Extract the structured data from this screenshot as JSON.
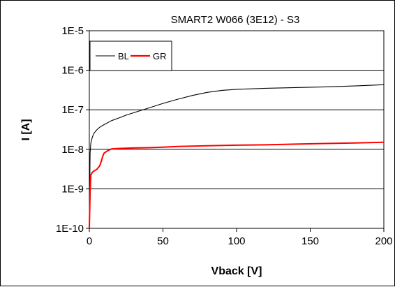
{
  "chart_data": {
    "type": "line",
    "title": "SMART2 W066 (3E12) - S3",
    "xlabel": "Vback [V]",
    "ylabel": "I [A]",
    "xlim": [
      0,
      200
    ],
    "ylim": [
      1e-10,
      1e-05
    ],
    "yscale": "log",
    "grid": "horizontal",
    "legend_position": "top-left",
    "x_ticks": [
      "0",
      "50",
      "100",
      "150",
      "200"
    ],
    "y_ticks": [
      "1E-10",
      "1E-9",
      "1E-8",
      "1E-7",
      "1E-6",
      "1E-5"
    ],
    "series": [
      {
        "name": "BL",
        "color": "#000000",
        "x": [
          0,
          0.5,
          1,
          2,
          3,
          5,
          7,
          10,
          15,
          20,
          25,
          30,
          40,
          50,
          60,
          70,
          80,
          90,
          100,
          120,
          140,
          160,
          180,
          200
        ],
        "y": [
          1e-10,
          8e-09,
          1.4e-08,
          2e-08,
          2.5e-08,
          3.1e-08,
          3.6e-08,
          4.2e-08,
          5.3e-08,
          6.2e-08,
          7.3e-08,
          8.4e-08,
          1.1e-07,
          1.45e-07,
          1.85e-07,
          2.3e-07,
          2.75e-07,
          3.1e-07,
          3.3e-07,
          3.5e-07,
          3.65e-07,
          3.8e-07,
          4e-07,
          4.3e-07
        ]
      },
      {
        "name": "GR",
        "color": "#ff0000",
        "x": [
          0,
          0.5,
          1,
          2,
          3,
          5,
          7,
          8,
          9,
          10,
          12,
          15,
          20,
          30,
          40,
          50,
          60,
          80,
          100,
          120,
          140,
          160,
          180,
          200
        ],
        "y": [
          1e-10,
          8e-10,
          2.2e-09,
          2.6e-09,
          2.8e-09,
          3.1e-09,
          3.8e-09,
          4.8e-09,
          6.5e-09,
          8e-09,
          9e-09,
          1.02e-08,
          1.05e-08,
          1.08e-08,
          1.1e-08,
          1.13e-08,
          1.18e-08,
          1.23e-08,
          1.27e-08,
          1.3e-08,
          1.35e-08,
          1.4e-08,
          1.45e-08,
          1.5e-08
        ]
      }
    ]
  }
}
